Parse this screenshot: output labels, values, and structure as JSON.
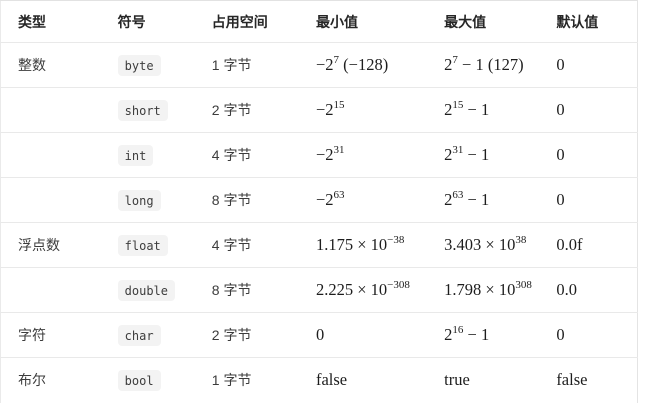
{
  "table": {
    "columns": [
      {
        "key": "type",
        "label": "类型"
      },
      {
        "key": "symbol",
        "label": "符号"
      },
      {
        "key": "space",
        "label": "占用空间"
      },
      {
        "key": "min",
        "label": "最小值"
      },
      {
        "key": "max",
        "label": "最大值"
      },
      {
        "key": "default",
        "label": "默认值"
      }
    ],
    "rows": [
      {
        "type": "整数",
        "symbol": "byte",
        "space": "1 字节",
        "min": "−2^{7} (−128)",
        "max": "2^{7} − 1 (127)",
        "default": "0"
      },
      {
        "type": "",
        "symbol": "short",
        "space": "2 字节",
        "min": "−2^{15}",
        "max": "2^{15} − 1",
        "default": "0"
      },
      {
        "type": "",
        "symbol": "int",
        "space": "4 字节",
        "min": "−2^{31}",
        "max": "2^{31} − 1",
        "default": "0"
      },
      {
        "type": "",
        "symbol": "long",
        "space": "8 字节",
        "min": "−2^{63}",
        "max": "2^{63} − 1",
        "default": "0"
      },
      {
        "type": "浮点数",
        "symbol": "float",
        "space": "4 字节",
        "min": "1.175 × 10^{−38}",
        "max": "3.403 × 10^{38}",
        "default": "0.0f"
      },
      {
        "type": "",
        "symbol": "double",
        "space": "8 字节",
        "min": "2.225 × 10^{−308}",
        "max": "1.798 × 10^{308}",
        "default": "0.0"
      },
      {
        "type": "字符",
        "symbol": "char",
        "space": "2 字节",
        "min": "0",
        "max": "2^{16} − 1",
        "default": "0"
      },
      {
        "type": "布尔",
        "symbol": "bool",
        "space": "1 字节",
        "min": "false",
        "max": "true",
        "default": "false"
      }
    ],
    "colors": {
      "header_text": "#262626",
      "body_text": "#3c3c3c",
      "math_text": "#1d1d1d",
      "row_border": "#e9e9e9",
      "badge_background": "#f3f3f3",
      "badge_text": "#3d3d3d"
    }
  }
}
